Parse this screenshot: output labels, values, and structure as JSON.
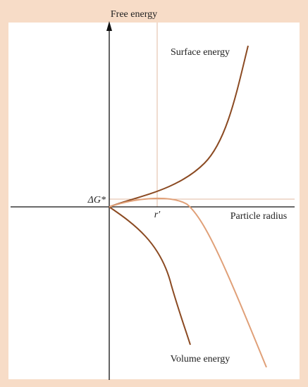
{
  "axes": {
    "y_label": "Free energy",
    "x_label": "Particle radius"
  },
  "curves": {
    "surface": "Surface energy",
    "volume": "Volume energy"
  },
  "critical": {
    "energy": "ΔG*",
    "radius": "r′"
  }
}
